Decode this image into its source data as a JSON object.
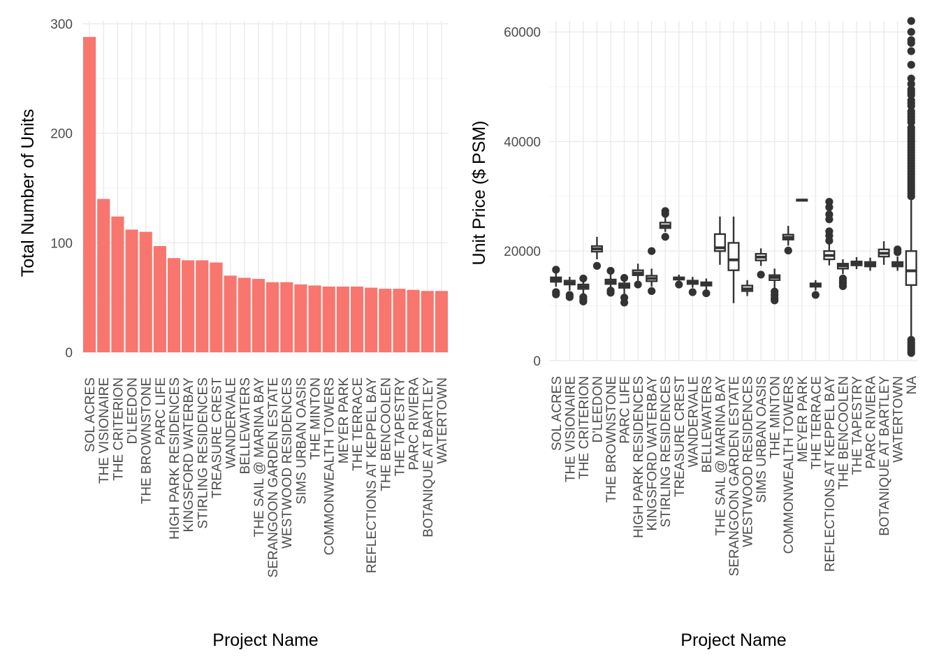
{
  "chart_data": [
    {
      "type": "bar",
      "xlabel": "Project Name",
      "ylabel": "Total Number of Units",
      "ylim": [
        0,
        300
      ],
      "yticks": [
        0,
        100,
        200,
        300
      ],
      "grid": true,
      "bar_color": "#f8766d",
      "categories": [
        "SOL ACRES",
        "THE VISIONAIRE",
        "THE CRITERION",
        "D'LEEDON",
        "THE BROWNSTONE",
        "PARC LIFE",
        "HIGH PARK RESIDENCES",
        "KINGSFORD WATERBAY",
        "STIRLING RESIDENCES",
        "TREASURE CREST",
        "WANDERVALE",
        "BELLEWATERS",
        "THE SAIL @ MARINA BAY",
        "SERANGOON GARDEN ESTATE",
        "WESTWOOD RESIDENCES",
        "SIMS URBAN OASIS",
        "THE MINTON",
        "COMMONWEALTH TOWERS",
        "MEYER PARK",
        "THE TERRACE",
        "REFLECTIONS AT KEPPEL BAY",
        "THE BENCOOLEN",
        "THE TAPESTRY",
        "PARC RIVIERA",
        "BOTANIQUE AT BARTLEY",
        "WATERTOWN"
      ],
      "values": [
        288,
        140,
        124,
        112,
        110,
        97,
        86,
        84,
        84,
        82,
        70,
        68,
        67,
        64,
        64,
        62,
        61,
        60,
        60,
        60,
        59,
        58,
        58,
        57,
        56,
        56
      ]
    },
    {
      "type": "boxplot",
      "xlabel": "Project Name",
      "ylabel": "Unit Price ($ PSM)",
      "ylim": [
        0,
        62000
      ],
      "yticks": [
        0,
        20000,
        40000,
        60000
      ],
      "grid": true,
      "categories": [
        "SOL ACRES",
        "THE VISIONAIRE",
        "THE CRITERION",
        "D'LEEDON",
        "THE BROWNSTONE",
        "PARC LIFE",
        "HIGH PARK RESIDENCES",
        "KINGSFORD WATERBAY",
        "STIRLING RESIDENCES",
        "TREASURE CREST",
        "WANDERVALE",
        "BELLEWATERS",
        "THE SAIL @ MARINA BAY",
        "SERANGOON GARDEN ESTATE",
        "WESTWOOD RESIDENCES",
        "SIMS URBAN OASIS",
        "THE MINTON",
        "COMMONWEALTH TOWERS",
        "MEYER PARK",
        "THE TERRACE",
        "REFLECTIONS AT KEPPEL BAY",
        "THE BENCOOLEN",
        "THE TAPESTRY",
        "PARC RIVIERA",
        "BOTANIQUE AT BARTLEY",
        "WATERTOWN",
        "NA"
      ],
      "boxes": [
        {
          "min": 13500,
          "q1": 14400,
          "median": 14800,
          "q3": 15200,
          "max": 16000,
          "outliers": [
            16600,
            12500,
            12100
          ]
        },
        {
          "min": 12800,
          "q1": 13900,
          "median": 14200,
          "q3": 14600,
          "max": 15300,
          "outliers": [
            12000,
            11600
          ]
        },
        {
          "min": 12200,
          "q1": 13100,
          "median": 13500,
          "q3": 13900,
          "max": 14700,
          "outliers": [
            15000,
            11600,
            11100,
            10800
          ]
        },
        {
          "min": 18500,
          "q1": 19900,
          "median": 20400,
          "q3": 20900,
          "max": 22600,
          "outliers": [
            17300
          ]
        },
        {
          "min": 13000,
          "q1": 14000,
          "median": 14400,
          "q3": 14800,
          "max": 15800,
          "outliers": [
            16400,
            12800,
            12400
          ]
        },
        {
          "min": 12000,
          "q1": 13300,
          "median": 13700,
          "q3": 14100,
          "max": 15000,
          "outliers": [
            15100,
            11500,
            10600
          ]
        },
        {
          "min": 14600,
          "q1": 15600,
          "median": 16000,
          "q3": 16500,
          "max": 17700,
          "outliers": [
            13900
          ]
        },
        {
          "min": 13500,
          "q1": 14500,
          "median": 15000,
          "q3": 15500,
          "max": 16800,
          "outliers": [
            20000,
            12700
          ]
        },
        {
          "min": 23500,
          "q1": 24200,
          "median": 24600,
          "q3": 25200,
          "max": 26500,
          "outliers": [
            27300,
            26800,
            22600
          ]
        },
        {
          "min": 14300,
          "q1": 14800,
          "median": 15000,
          "q3": 15200,
          "max": 15700,
          "outliers": [
            13900
          ]
        },
        {
          "min": 13300,
          "q1": 14000,
          "median": 14300,
          "q3": 14600,
          "max": 15300,
          "outliers": [
            12500
          ]
        },
        {
          "min": 13000,
          "q1": 13700,
          "median": 14000,
          "q3": 14300,
          "max": 15000,
          "outliers": [
            12300
          ]
        },
        {
          "min": 17500,
          "q1": 20000,
          "median": 20600,
          "q3": 23100,
          "max": 26300,
          "outliers": []
        },
        {
          "min": 10500,
          "q1": 16500,
          "median": 18400,
          "q3": 21500,
          "max": 26300,
          "outliers": []
        },
        {
          "min": 11800,
          "q1": 12700,
          "median": 13100,
          "q3": 13700,
          "max": 14700,
          "outliers": []
        },
        {
          "min": 17300,
          "q1": 18300,
          "median": 18900,
          "q3": 19500,
          "max": 20500,
          "outliers": [
            15700
          ]
        },
        {
          "min": 13200,
          "q1": 14700,
          "median": 15200,
          "q3": 15600,
          "max": 16800,
          "outliers": [
            12600,
            12000,
            11400,
            11000
          ]
        },
        {
          "min": 21000,
          "q1": 22100,
          "median": 22500,
          "q3": 23000,
          "max": 24600,
          "outliers": [
            20100
          ]
        },
        {
          "min": 29100,
          "q1": 29200,
          "median": 29300,
          "q3": 29400,
          "max": 29500,
          "outliers": []
        },
        {
          "min": 12800,
          "q1": 13500,
          "median": 13800,
          "q3": 14100,
          "max": 14700,
          "outliers": [
            12000
          ]
        },
        {
          "min": 17400,
          "q1": 18500,
          "median": 19200,
          "q3": 20000,
          "max": 21300,
          "outliers": [
            29000,
            28000,
            26700,
            25800,
            23600,
            22800,
            21900
          ]
        },
        {
          "min": 15800,
          "q1": 16800,
          "median": 17300,
          "q3": 17700,
          "max": 18500,
          "outliers": [
            15000,
            14500,
            14100,
            13600
          ]
        },
        {
          "min": 16700,
          "q1": 17400,
          "median": 17800,
          "q3": 18100,
          "max": 18900,
          "outliers": []
        },
        {
          "min": 16400,
          "q1": 17200,
          "median": 17600,
          "q3": 18000,
          "max": 18800,
          "outliers": []
        },
        {
          "min": 17500,
          "q1": 19000,
          "median": 19600,
          "q3": 20300,
          "max": 21800,
          "outliers": []
        },
        {
          "min": 16400,
          "q1": 17200,
          "median": 17600,
          "q3": 18000,
          "max": 19000,
          "outliers": [
            20300,
            19800
          ]
        },
        {
          "min": 4000,
          "q1": 13800,
          "median": 16400,
          "q3": 20000,
          "max": 29400,
          "outliers": [
            62000,
            60000,
            58500,
            58000,
            56500,
            54000,
            51500,
            50500,
            49500,
            49000,
            48500,
            47500,
            47000,
            46500,
            45500,
            45000,
            44500,
            44000,
            43500,
            42500,
            42000,
            41500,
            41000,
            40500,
            40000,
            39500,
            39000,
            38500,
            38000,
            37500,
            37000,
            36500,
            36000,
            35500,
            35000,
            34500,
            34000,
            33500,
            33000,
            32500,
            32000,
            31500,
            31000,
            30500,
            30000,
            3800,
            3300,
            2900,
            2500,
            2100,
            1700,
            1400
          ]
        }
      ]
    }
  ]
}
